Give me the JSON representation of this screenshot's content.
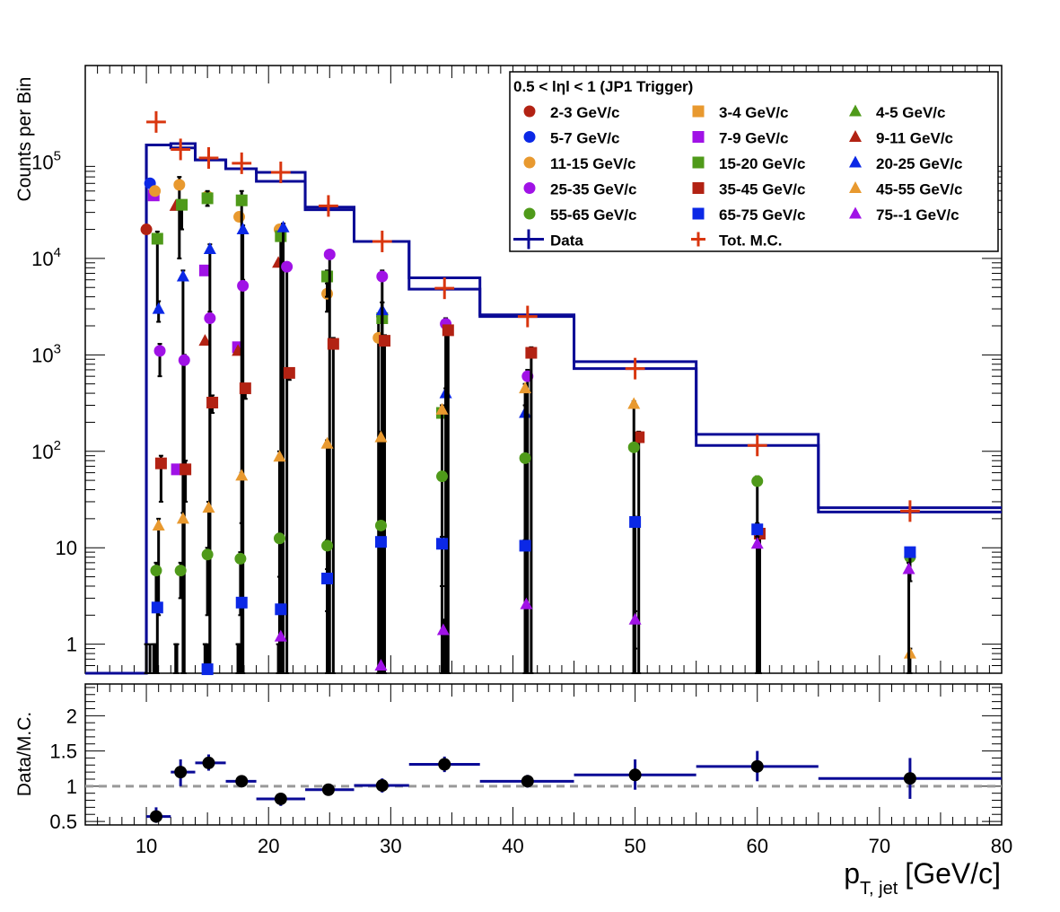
{
  "chart_data": [
    {
      "type": "scatter",
      "ylabel": "Counts per Bin",
      "yscale": "log",
      "xlim": [
        5,
        80
      ],
      "ylim": [
        0.5,
        1000000
      ],
      "y_tick_labels": [
        {
          "v": 1,
          "label": "1"
        },
        {
          "v": 10,
          "label": "10"
        },
        {
          "v": 100,
          "label": "10",
          "exp": "2"
        },
        {
          "v": 1000,
          "label": "10",
          "exp": "3"
        },
        {
          "v": 10000,
          "label": "10",
          "exp": "4"
        },
        {
          "v": 100000,
          "label": "10",
          "exp": "5"
        }
      ],
      "legend_title": "0.5 < lηl < 1 (JP1 Trigger)",
      "legend_placement": "top-right",
      "data_label": "Data",
      "mc_label": "Tot. M.C.",
      "data_color": "#0a0a96",
      "mc_color": "#d9360f",
      "bin_edges": [
        10,
        12,
        14,
        16.5,
        19,
        23,
        27,
        31.5,
        37.3,
        45,
        55,
        65,
        80
      ],
      "data_histogram": [
        150000,
        155000,
        105000,
        85000,
        63000,
        34000,
        15000,
        6300,
        2600,
        850,
        150,
        26
      ],
      "mc_histogram": [
        150000,
        140000,
        105000,
        85000,
        78000,
        32000,
        15000,
        4800,
        2500,
        720,
        115,
        23.5
      ],
      "tot_mc_points": [
        {
          "x": 10.8,
          "y": 260000,
          "dx": 0.8
        },
        {
          "x": 12.8,
          "y": 135000,
          "dx": 0.8
        },
        {
          "x": 15.1,
          "y": 110000,
          "dx": 0.8
        },
        {
          "x": 17.8,
          "y": 97000,
          "dx": 0.8
        },
        {
          "x": 21.0,
          "y": 78000,
          "dx": 0.8
        },
        {
          "x": 24.9,
          "y": 35000,
          "dx": 0.8
        },
        {
          "x": 29.3,
          "y": 15000,
          "dx": 0.8
        },
        {
          "x": 34.4,
          "y": 4900,
          "dx": 0.8
        },
        {
          "x": 41.2,
          "y": 2500,
          "dx": 0.8
        },
        {
          "x": 50.0,
          "y": 720,
          "dx": 0.8
        },
        {
          "x": 60.0,
          "y": 115,
          "dx": 0.8
        },
        {
          "x": 72.5,
          "y": 24,
          "dx": 0.8
        }
      ],
      "series": [
        {
          "name": "2-3 GeV/c",
          "color": "#b22213",
          "marker": "circle",
          "points": [
            [
              10,
              20000,
              0.5,
              1
            ]
          ]
        },
        {
          "name": "3-4 GeV/c",
          "color": "#e8992f",
          "marker": "square",
          "points": []
        },
        {
          "name": "4-5 GeV/c",
          "color": "#4f9a1a",
          "marker": "triangle",
          "points": []
        },
        {
          "name": "5-7 GeV/c",
          "color": "#0b28e6",
          "marker": "circle",
          "points": [
            [
              10.3,
              60000,
              0.5,
              1
            ]
          ]
        },
        {
          "name": "7-9 GeV/c",
          "color": "#a012e6",
          "marker": "square",
          "points": [
            [
              10.6,
              45000,
              0.5,
              1
            ],
            [
              12.5,
              65,
              0.5,
              1
            ],
            [
              14.8,
              7500,
              0.5,
              1
            ],
            [
              17.5,
              1200,
              0.5,
              1
            ]
          ]
        },
        {
          "name": "9-11 GeV/c",
          "color": "#b22213",
          "marker": "triangle",
          "points": [
            [
              12.4,
              35000,
              0.5,
              1
            ],
            [
              14.8,
              1400,
              0.5,
              1
            ],
            [
              17.5,
              1100,
              0.5,
              1
            ],
            [
              20.8,
              9000,
              0.5,
              1
            ]
          ]
        },
        {
          "name": "11-15 GeV/c",
          "color": "#e8992f",
          "marker": "circle",
          "points": [
            [
              10.7,
              50000,
              0.5,
              1
            ],
            [
              12.7,
              58000,
              10000,
              70000
            ],
            [
              15.0,
              44000,
              0.5,
              1
            ],
            [
              17.6,
              27000,
              0.5,
              1
            ],
            [
              20.9,
              20000,
              0.5,
              1
            ],
            [
              24.8,
              4300,
              2800,
              5500
            ],
            [
              29.0,
              1500,
              0.5,
              2500
            ]
          ]
        },
        {
          "name": "15-20 GeV/c",
          "color": "#4f9a1a",
          "marker": "square",
          "points": [
            [
              10.9,
              16000,
              3000,
              19000
            ],
            [
              12.9,
              36000,
              20000,
              40000
            ],
            [
              15.0,
              42000,
              35000,
              50000
            ],
            [
              17.8,
              40000,
              0.5,
              50000
            ],
            [
              21.0,
              17000,
              0.5,
              19000
            ],
            [
              24.8,
              6500,
              4000,
              7500
            ],
            [
              29.3,
              2400,
              0.5,
              3500
            ],
            [
              34.2,
              250,
              0.5,
              300
            ]
          ]
        },
        {
          "name": "20-25 GeV/c",
          "color": "#0b28e6",
          "marker": "triangle",
          "points": [
            [
              11.0,
              3000,
              2200,
              3600
            ],
            [
              13.0,
              6500,
              0.5,
              7500
            ],
            [
              15.2,
              12500,
              0.5,
              14000
            ],
            [
              17.9,
              20000,
              0.5,
              22000
            ],
            [
              21.2,
              21000,
              0.5,
              23000
            ],
            [
              29.3,
              2900,
              0.5,
              3500
            ],
            [
              34.5,
              400,
              0.5,
              450
            ],
            [
              41.0,
              250,
              0.5,
              300
            ]
          ]
        },
        {
          "name": "25-35 GeV/c",
          "color": "#a012e6",
          "marker": "circle",
          "points": [
            [
              11.1,
              1100,
              600,
              1300
            ],
            [
              13.1,
              880,
              0.5,
              1000
            ],
            [
              15.2,
              2400,
              0.5,
              2800
            ],
            [
              17.9,
              5200,
              0.5,
              6000
            ],
            [
              21.5,
              8200,
              0.5,
              9000
            ],
            [
              25.0,
              11000,
              0.5,
              12000
            ],
            [
              29.3,
              6500,
              0.5,
              7500
            ],
            [
              34.5,
              2100,
              0.5,
              2400
            ],
            [
              41.2,
              600,
              0.5,
              700
            ]
          ]
        },
        {
          "name": "35-45 GeV/c",
          "color": "#b22213",
          "marker": "square",
          "points": [
            [
              11.2,
              75,
              30,
              90
            ],
            [
              13.2,
              65,
              30,
              80
            ],
            [
              15.4,
              320,
              250,
              380
            ],
            [
              18.1,
              450,
              350,
              500
            ],
            [
              21.7,
              650,
              550,
              700
            ],
            [
              25.3,
              1300,
              0.5,
              1500
            ],
            [
              29.5,
              1400,
              0.5,
              1600
            ],
            [
              34.7,
              1800,
              0.5,
              2000
            ],
            [
              41.5,
              1050,
              0.5,
              1200
            ],
            [
              50.3,
              140,
              0.5,
              160
            ],
            [
              60.2,
              14,
              0.5,
              16
            ]
          ]
        },
        {
          "name": "45-55 GeV/c",
          "color": "#e8992f",
          "marker": "triangle",
          "points": [
            [
              11.0,
              17,
              2,
              20
            ],
            [
              13.0,
              20,
              3,
              23
            ],
            [
              15.1,
              26,
              8,
              30
            ],
            [
              17.8,
              56,
              18,
              60
            ],
            [
              20.9,
              88,
              0.5,
              100
            ],
            [
              24.8,
              120,
              0.5,
              130
            ],
            [
              29.2,
              140,
              0.5,
              160
            ],
            [
              34.2,
              270,
              0.5,
              300
            ],
            [
              41.0,
              450,
              0.5,
              500
            ],
            [
              49.9,
              310,
              0.5,
              330
            ],
            [
              72.5,
              0.8,
              0.5,
              0.9
            ]
          ]
        },
        {
          "name": "55-65 GeV/c",
          "color": "#4f9a1a",
          "marker": "circle",
          "points": [
            [
              10.8,
              5.8,
              2.5,
              7
            ],
            [
              12.8,
              5.8,
              3,
              7
            ],
            [
              15.0,
              8.5,
              2,
              10
            ],
            [
              17.7,
              7.7,
              2,
              9
            ],
            [
              20.9,
              12.5,
              5,
              14
            ],
            [
              24.8,
              10.5,
              0.5,
              12
            ],
            [
              29.2,
              17,
              0.5,
              19
            ],
            [
              34.2,
              55,
              0.5,
              60
            ],
            [
              41.0,
              85,
              0.5,
              90
            ],
            [
              49.9,
              110,
              0.5,
              120
            ],
            [
              60.0,
              49,
              0.5,
              55
            ],
            [
              72.5,
              8,
              4.5,
              9
            ]
          ]
        },
        {
          "name": "65-75 GeV/c",
          "color": "#0b28e6",
          "marker": "square",
          "points": [
            [
              10.9,
              2.4,
              0.5,
              3
            ],
            [
              15.0,
              0.55,
              0.5,
              0.7
            ],
            [
              17.8,
              2.7,
              0.5,
              3.2
            ],
            [
              21.0,
              2.3,
              0.5,
              2.8
            ],
            [
              24.8,
              4.8,
              2.2,
              6
            ],
            [
              29.2,
              11.5,
              0.5,
              13
            ],
            [
              34.2,
              11,
              4,
              13
            ],
            [
              41.0,
              10.5,
              0.5,
              12
            ],
            [
              50.0,
              18.5,
              0.5,
              21
            ],
            [
              60.0,
              15.5,
              0.5,
              18
            ],
            [
              72.5,
              9,
              4.5,
              10
            ]
          ]
        },
        {
          "name": "75--1 GeV/c",
          "color": "#a012e6",
          "marker": "triangle",
          "points": [
            [
              21.0,
              1.2,
              0.5,
              1.4
            ],
            [
              29.2,
              0.6,
              0.5,
              0.7
            ],
            [
              34.3,
              1.4,
              0.5,
              1.8
            ],
            [
              41.1,
              2.6,
              0.5,
              3
            ],
            [
              50.0,
              1.8,
              0.9,
              2.2
            ],
            [
              60.0,
              11,
              0.5,
              13
            ],
            [
              72.4,
              6,
              0.5,
              7
            ]
          ]
        }
      ]
    },
    {
      "type": "scatter",
      "xlabel": "p",
      "xlabel_sub": "T, jet",
      "xlabel_unit": "[GeV/c]",
      "ylabel": "Data/M.C.",
      "xlim": [
        5,
        80
      ],
      "ylim": [
        0.45,
        2.45
      ],
      "x_ticks": [
        10,
        20,
        30,
        40,
        50,
        60,
        70,
        80
      ],
      "y_ticks": [
        0.5,
        1,
        1.5,
        2
      ],
      "reference_line": 1,
      "points": [
        {
          "x": 10.8,
          "y": 0.57,
          "xlo": 10,
          "xhi": 12,
          "ylo": 0.48,
          "yhi": 0.7
        },
        {
          "x": 12.8,
          "y": 1.2,
          "xlo": 12,
          "xhi": 14,
          "ylo": 1.0,
          "yhi": 1.38
        },
        {
          "x": 15.1,
          "y": 1.33,
          "xlo": 14,
          "xhi": 16.5,
          "ylo": 1.22,
          "yhi": 1.45
        },
        {
          "x": 17.8,
          "y": 1.07,
          "xlo": 16.5,
          "xhi": 19,
          "ylo": 1.03,
          "yhi": 1.11
        },
        {
          "x": 21.0,
          "y": 0.82,
          "xlo": 19,
          "xhi": 23,
          "ylo": 0.72,
          "yhi": 0.9
        },
        {
          "x": 24.9,
          "y": 0.95,
          "xlo": 23,
          "xhi": 27,
          "ylo": 0.92,
          "yhi": 0.98
        },
        {
          "x": 29.3,
          "y": 1.01,
          "xlo": 27,
          "xhi": 31.5,
          "ylo": 0.91,
          "yhi": 1.11
        },
        {
          "x": 34.4,
          "y": 1.31,
          "xlo": 31.5,
          "xhi": 37.3,
          "ylo": 1.2,
          "yhi": 1.42
        },
        {
          "x": 41.2,
          "y": 1.07,
          "xlo": 37.3,
          "xhi": 45,
          "ylo": 0.98,
          "yhi": 1.16
        },
        {
          "x": 50.0,
          "y": 1.16,
          "xlo": 45,
          "xhi": 55,
          "ylo": 0.95,
          "yhi": 1.38
        },
        {
          "x": 60.0,
          "y": 1.28,
          "xlo": 55,
          "xhi": 65,
          "ylo": 1.07,
          "yhi": 1.5
        },
        {
          "x": 72.5,
          "y": 1.11,
          "xlo": 65,
          "xhi": 80,
          "ylo": 0.82,
          "yhi": 1.4
        }
      ]
    }
  ]
}
